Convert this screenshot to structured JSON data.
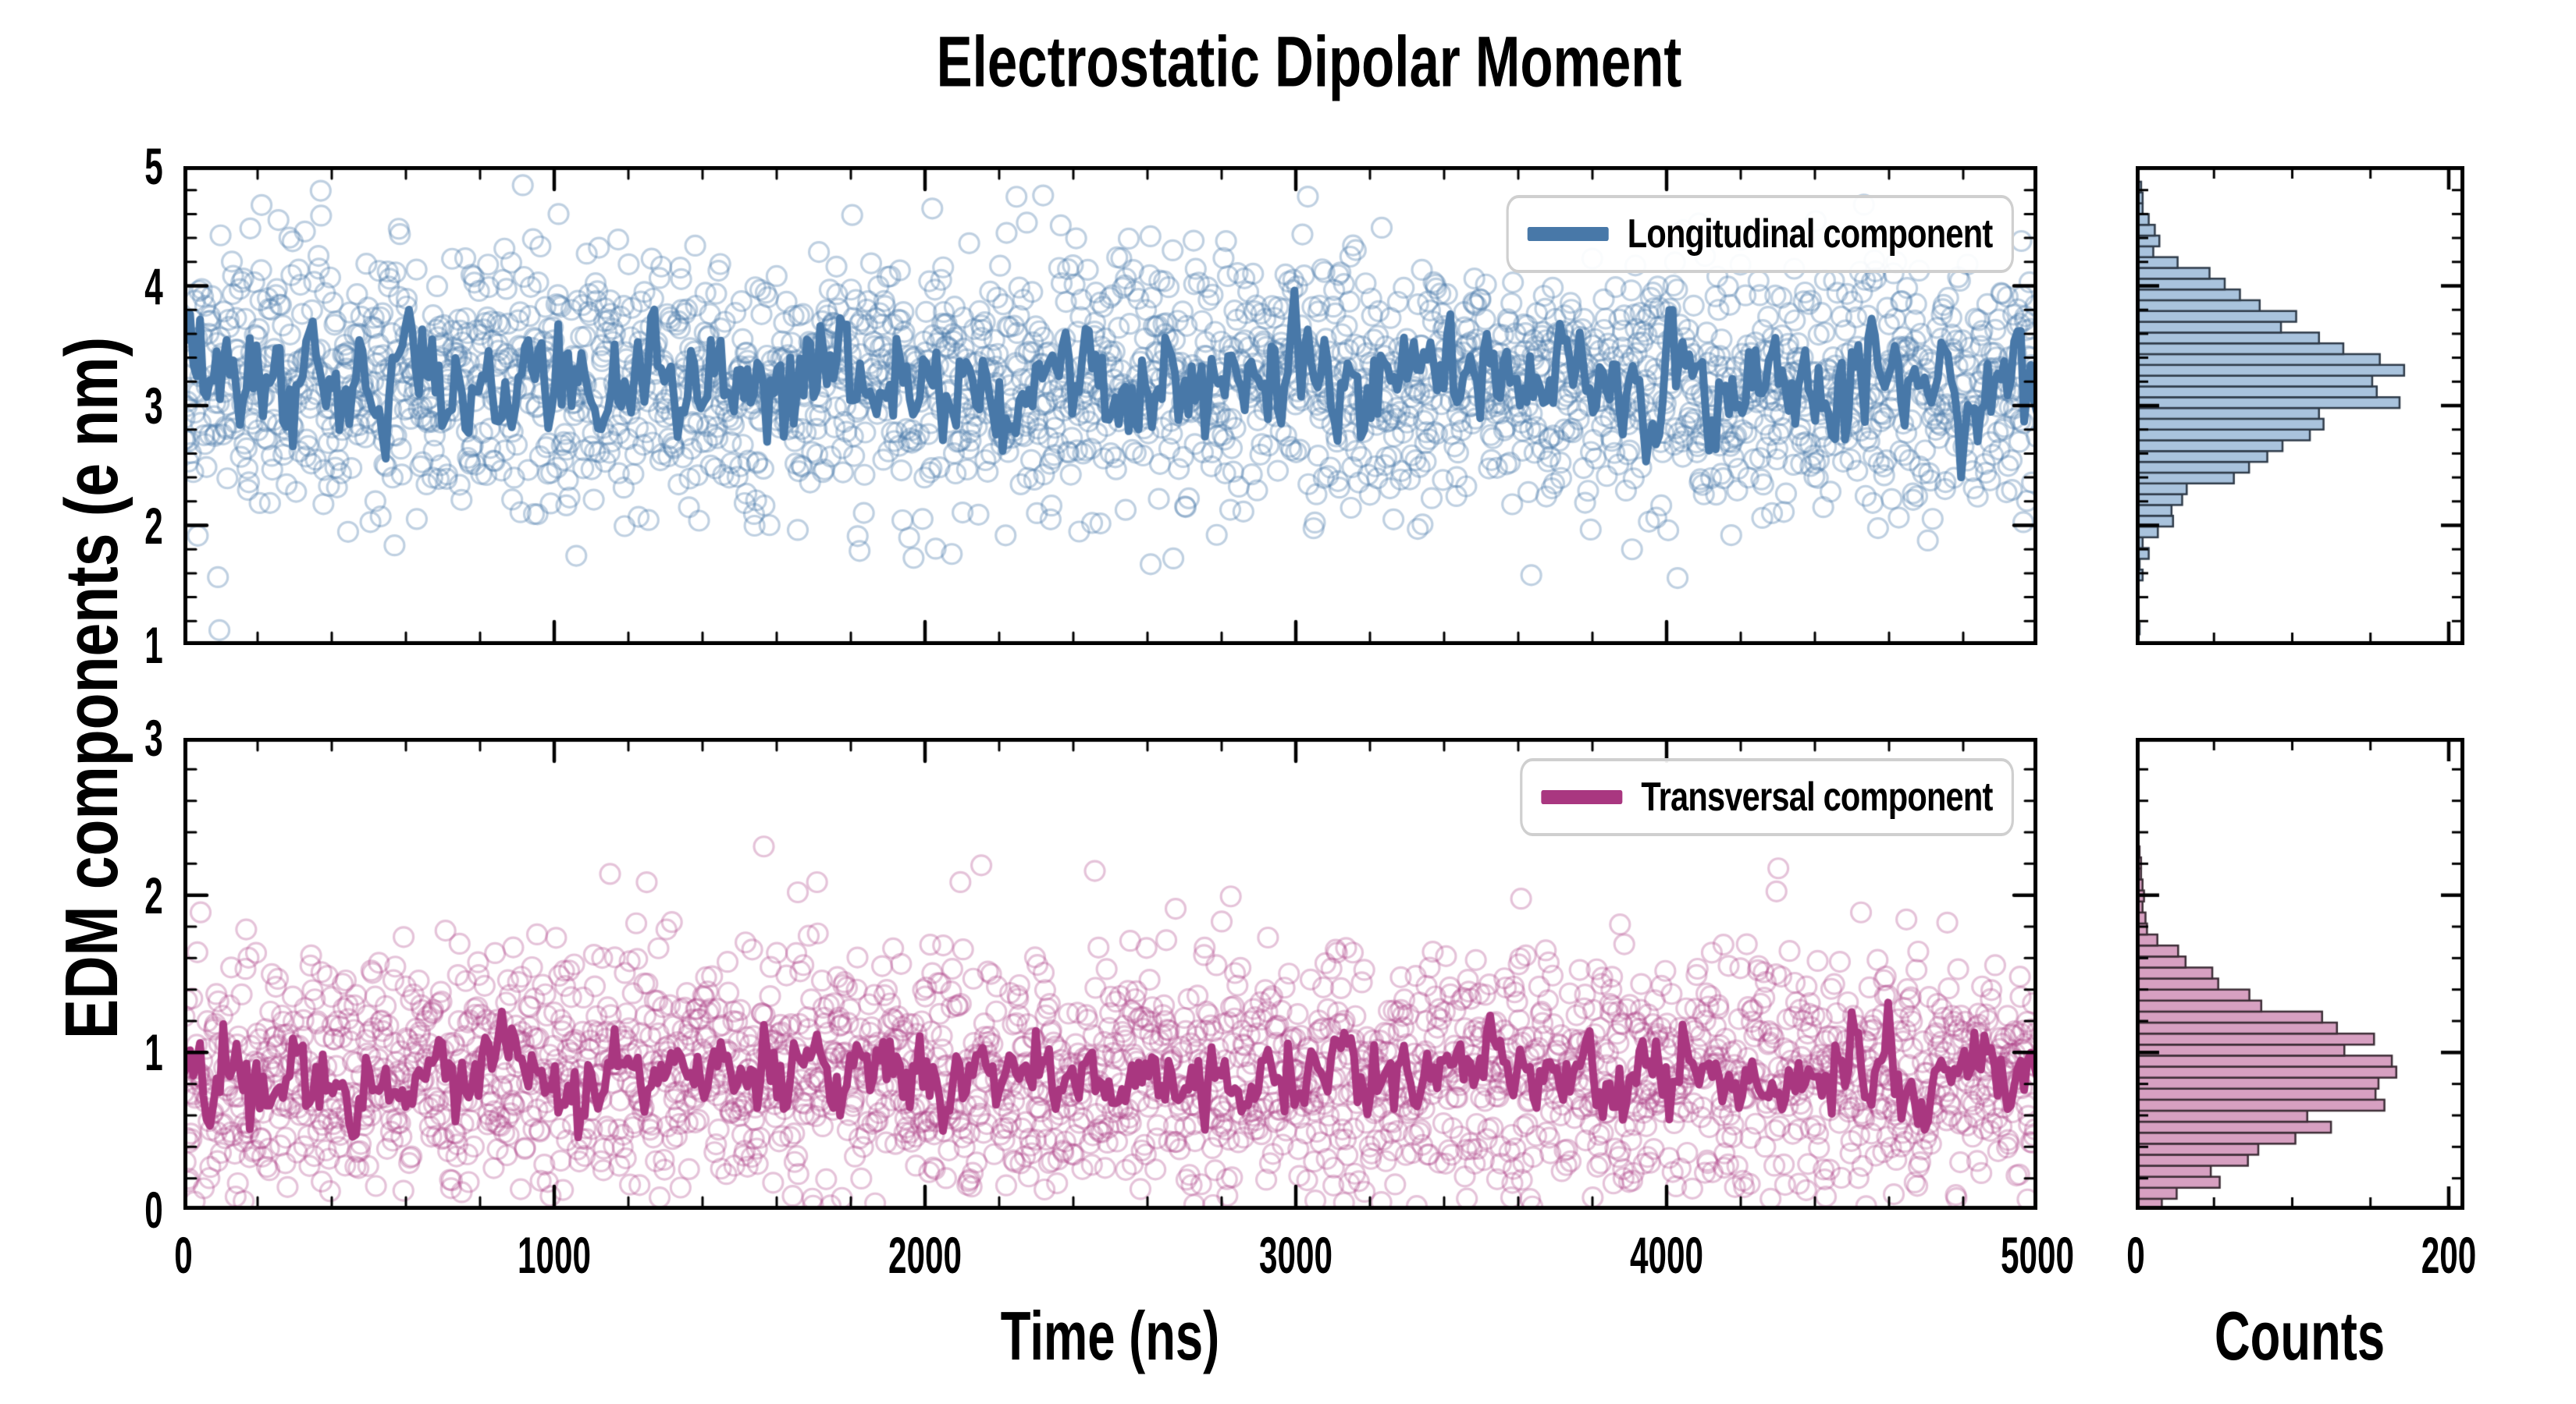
{
  "figure": {
    "title": "Electrostatic Dipolar Moment",
    "background": "#ffffff"
  },
  "axes": {
    "shared_ylabel": "EDM components (e nm)",
    "time_xlabel": "Time (ns)",
    "counts_xlabel": "Counts"
  },
  "chart_data": [
    {
      "id": "longitudinal-timeseries",
      "type": "scatter+line",
      "xlabel": "Time (ns)",
      "ylabel": "EDM components (e nm)",
      "xlim": [
        0,
        5000
      ],
      "ylim": [
        1,
        5
      ],
      "x_ticks": [
        0,
        1000,
        2000,
        3000,
        4000,
        5000
      ],
      "x_minor_step": 200,
      "y_ticks": [
        1,
        2,
        3,
        4,
        5
      ],
      "y_minor_step": 0.2,
      "show_x_tick_labels": false,
      "show_y_tick_labels": true,
      "tick_direction": "in",
      "legend": {
        "label": "Longitudinal component",
        "position": "upper right"
      },
      "series": [
        {
          "name": "longitudinal-samples",
          "style": "scatter-open-circles",
          "n_points": 2400,
          "distribution": "gaussian",
          "mean": 3.2,
          "std": 0.55,
          "clip": [
            1.03,
            4.97
          ],
          "color": "#4878a8",
          "alpha": 0.35,
          "marker_radius": 12.5,
          "seed": 11
        },
        {
          "name": "longitudinal-mean-line",
          "style": "line",
          "n_points": 560,
          "mean": 3.2,
          "ar_phi": 0.45,
          "ar_sigma": 0.21,
          "color": "#4878a8",
          "width": 10,
          "seed": 12
        }
      ]
    },
    {
      "id": "transversal-timeseries",
      "type": "scatter+line",
      "xlabel": "Time (ns)",
      "ylabel": "EDM components (e nm)",
      "xlim": [
        0,
        5000
      ],
      "ylim": [
        0,
        3
      ],
      "x_ticks": [
        0,
        1000,
        2000,
        3000,
        4000,
        5000
      ],
      "x_minor_step": 200,
      "y_ticks": [
        0,
        1,
        2,
        3
      ],
      "y_minor_step": 0.2,
      "show_x_tick_labels": true,
      "show_y_tick_labels": true,
      "tick_direction": "in",
      "legend": {
        "label": "Transversal component",
        "position": "upper right"
      },
      "series": [
        {
          "name": "transversal-samples",
          "style": "scatter-open-circles",
          "n_points": 2400,
          "distribution": "gaussian",
          "mean": 0.85,
          "std": 0.4,
          "clip": [
            0.015,
            2.4
          ],
          "color": "#a93780",
          "alpha": 0.3,
          "marker_radius": 12.5,
          "seed": 21
        },
        {
          "name": "transversal-mean-line",
          "style": "line",
          "n_points": 560,
          "mean": 0.85,
          "ar_phi": 0.45,
          "ar_sigma": 0.12,
          "color": "#a93780",
          "width": 10,
          "seed": 22
        }
      ]
    },
    {
      "id": "longitudinal-histogram",
      "type": "histogram-horizontal",
      "source_series": "longitudinal-samples",
      "xlabel": "Counts",
      "xlim": [
        0,
        210
      ],
      "x_ticks": [
        0,
        200
      ],
      "x_minor_step": 50,
      "ylim": [
        1,
        5
      ],
      "y_ticks": [
        1,
        2,
        3,
        4,
        5
      ],
      "y_minor_step": 0.2,
      "bin_start": 1.0,
      "bin_width": 0.09,
      "peak_count": 170,
      "fill": "#a9c3dd",
      "edge": "#2f3b49",
      "show_x_tick_labels": false,
      "show_y_tick_labels": false
    },
    {
      "id": "transversal-histogram",
      "type": "histogram-horizontal",
      "source_series": "transversal-samples",
      "xlabel": "Counts",
      "xlim": [
        0,
        210
      ],
      "x_ticks": [
        0,
        200
      ],
      "x_minor_step": 50,
      "ylim": [
        0,
        3
      ],
      "y_ticks": [
        0,
        1,
        2,
        3
      ],
      "y_minor_step": 0.2,
      "bin_start": 0.0,
      "bin_width": 0.07,
      "peak_count": 165,
      "fill": "#d7a0c1",
      "edge": "#3c2d36",
      "show_x_tick_labels": true,
      "show_y_tick_labels": false
    }
  ]
}
